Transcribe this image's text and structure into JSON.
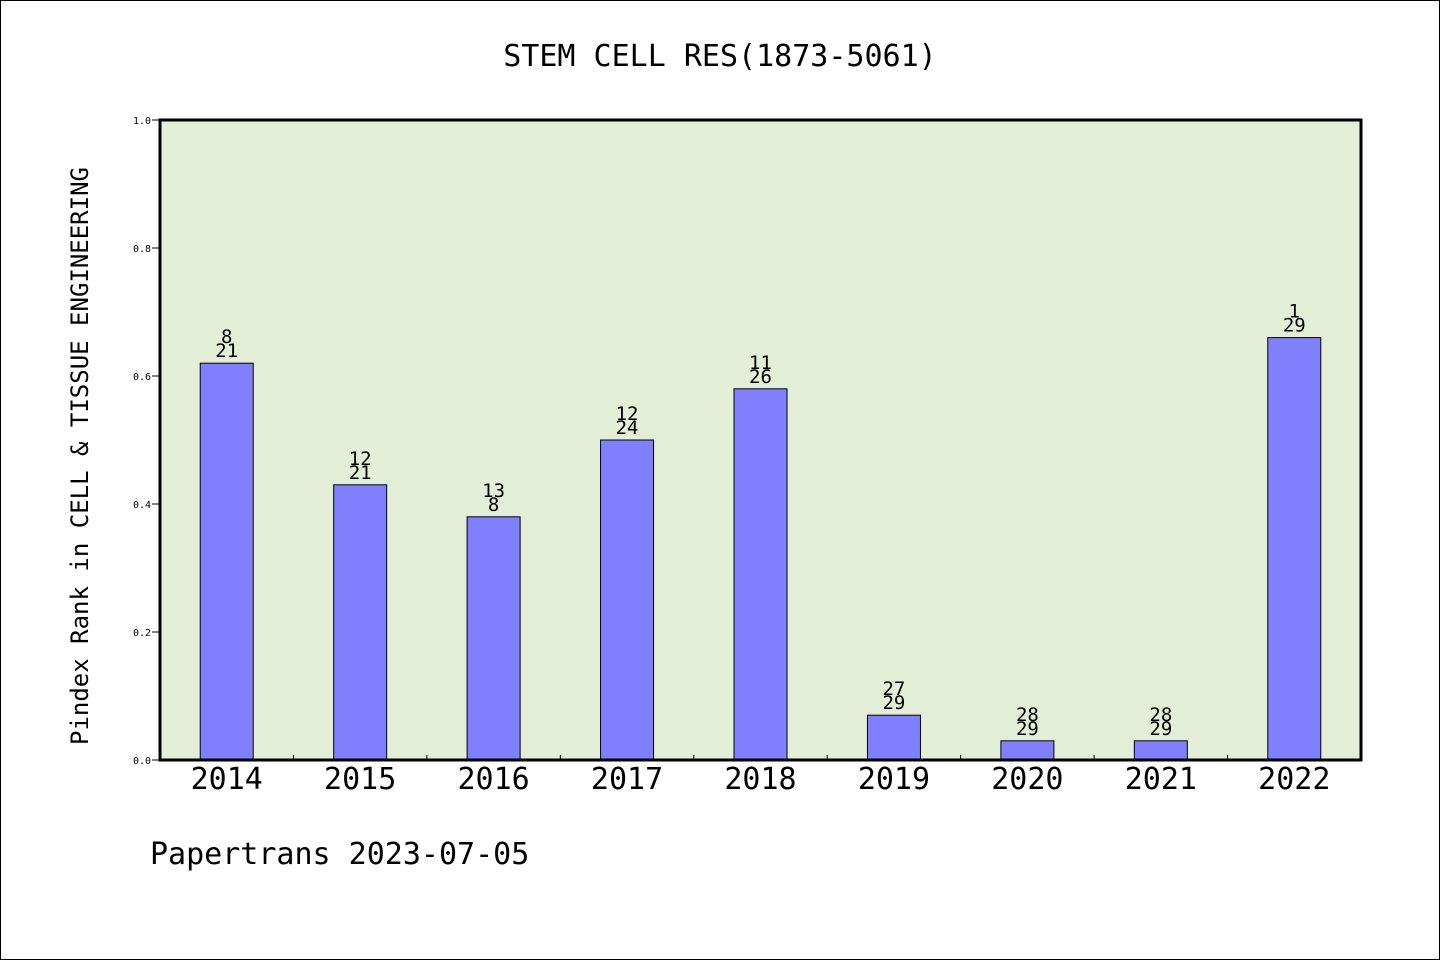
{
  "chart_data": {
    "type": "bar",
    "title": "STEM CELL RES(1873-5061)",
    "ylabel": "Pindex Rank in CELL & TISSUE ENGINEERING",
    "xlabel": "",
    "categories": [
      "2014",
      "2015",
      "2016",
      "2017",
      "2018",
      "2019",
      "2020",
      "2021",
      "2022"
    ],
    "values": [
      0.62,
      0.43,
      0.38,
      0.5,
      0.58,
      0.07,
      0.03,
      0.03,
      0.66
    ],
    "label_top": [
      "8",
      "12",
      "13",
      "12",
      "11",
      "27",
      "28",
      "28",
      "1"
    ],
    "label_bottom": [
      "21",
      "21",
      "8",
      "24",
      "26",
      "29",
      "29",
      "29",
      "29"
    ],
    "ylim": [
      0.0,
      1.0
    ],
    "yticks": [
      0.0,
      0.2,
      0.4,
      0.6,
      0.8,
      1.0
    ],
    "ytick_labels": [
      "0.0",
      "0.2",
      "0.4",
      "0.6",
      "0.8",
      "1.0"
    ],
    "grid": false,
    "colors": {
      "plot_background": "#e2efd6",
      "bar_fill": "#8080ff",
      "bar_stroke": "#000000",
      "axis": "#000000",
      "text": "#000000"
    }
  },
  "footer": "Papertrans 2023-07-05"
}
